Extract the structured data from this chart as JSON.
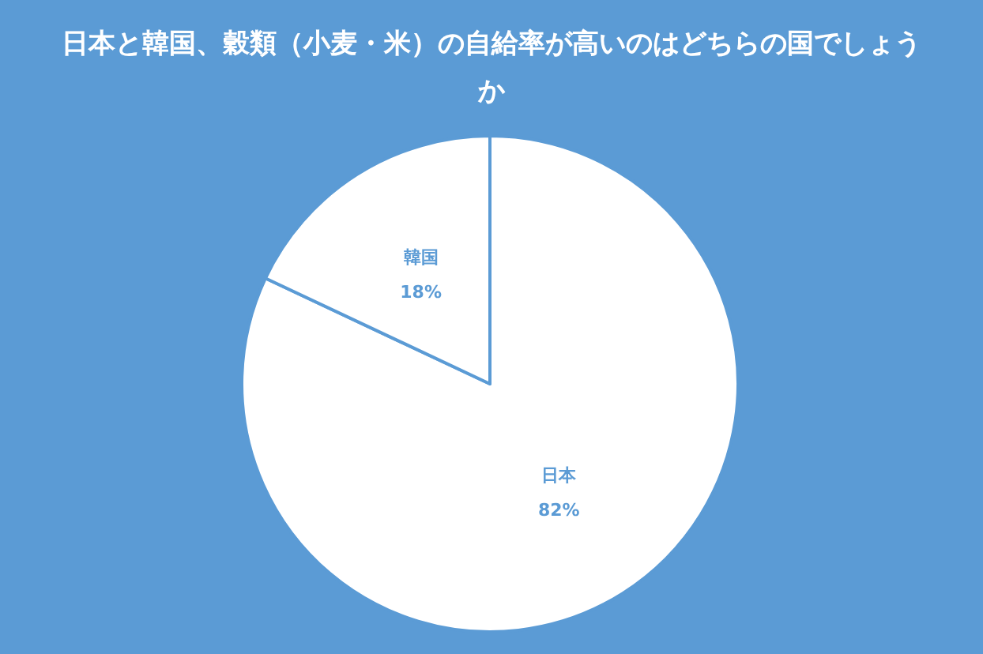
{
  "chart_data": {
    "type": "pie",
    "title": "日本と韓国、穀類（小麦・米）の自給率が高いのはどちらの国でしょうか",
    "categories": [
      "日本",
      "韓国"
    ],
    "values": [
      82,
      18
    ],
    "colors": [
      "#ffffff",
      "#ffffff"
    ],
    "value_labels": [
      "82%",
      "18%"
    ],
    "legend": false
  }
}
